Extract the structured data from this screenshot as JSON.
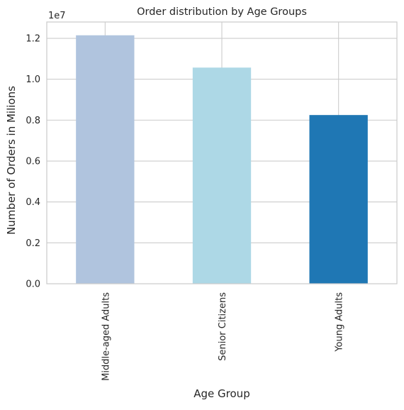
{
  "chart_data": {
    "type": "bar",
    "title": "Order distribution by Age Groups",
    "xlabel": "Age Group",
    "ylabel": "Number of Orders in Milions",
    "offset_label": "1e7",
    "categories": [
      "Middle-aged Adults",
      "Senior Citizens",
      "Young Adults"
    ],
    "values": [
      12150000,
      10570000,
      8250000
    ],
    "colors": [
      "#b0c4de",
      "#add8e6",
      "#1f77b4"
    ],
    "ylim": [
      0,
      12800000
    ],
    "yticks": [
      0,
      2000000,
      4000000,
      6000000,
      8000000,
      10000000,
      12000000
    ],
    "ytick_labels": [
      "0.0",
      "0.2",
      "0.4",
      "0.6",
      "0.8",
      "1.0",
      "1.2"
    ],
    "grid": true,
    "legend": false
  }
}
